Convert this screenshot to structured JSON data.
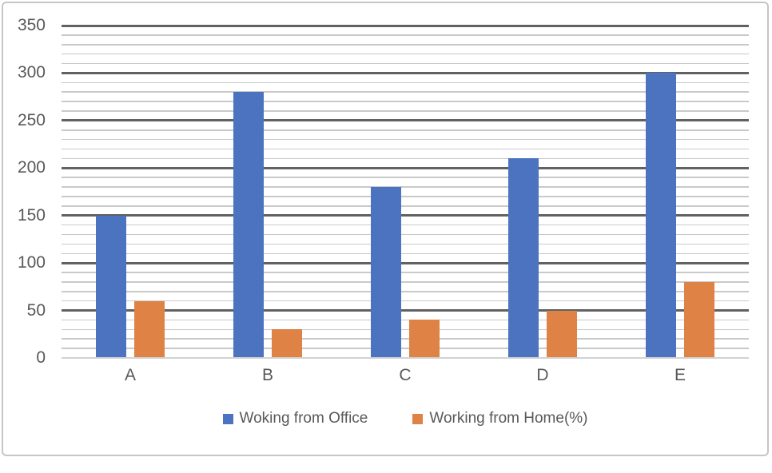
{
  "chart_data": {
    "type": "bar",
    "title": "",
    "xlabel": "",
    "ylabel": "",
    "categories": [
      "A",
      "B",
      "C",
      "D",
      "E"
    ],
    "series": [
      {
        "name": "Woking from Office",
        "color": "#4C73C0",
        "values": [
          150,
          280,
          180,
          210,
          300
        ]
      },
      {
        "name": "Working from Home(%)",
        "color": "#DE8245",
        "values": [
          60,
          30,
          40,
          50,
          80
        ]
      }
    ],
    "ylim": [
      0,
      350
    ],
    "yticks": [
      350,
      300,
      250,
      200,
      150,
      100,
      50,
      0
    ],
    "major_grid_step": 50,
    "minor_grid_step": 10,
    "grid": true,
    "legend_position": "bottom"
  },
  "colors": {
    "major_gridline": "#616161",
    "minor_gridline": "#C9C9C9",
    "axis_line": "#D2D2D2",
    "text": "#595959",
    "frame_border": "#C6C6C6",
    "background": "#FFFFFF"
  }
}
